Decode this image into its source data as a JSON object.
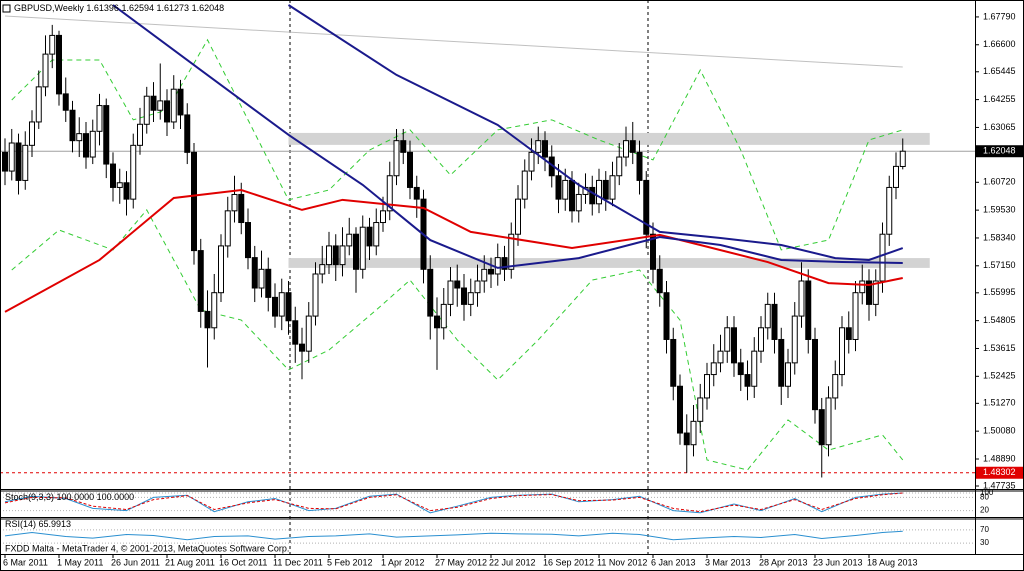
{
  "chart_data": {
    "type": "candlestick",
    "title": "GBPUSD,Weekly",
    "footer": "FXDD Malta - MetaTrader 4, © 2001-2013, MetaQuotes Software Corp.",
    "categories": [
      "6 Mar 2011",
      null,
      null,
      null,
      null,
      null,
      null,
      null,
      "1 May 2011",
      null,
      null,
      null,
      null,
      null,
      null,
      null,
      "26 Jun 2011",
      null,
      null,
      null,
      null,
      null,
      null,
      null,
      "21 Aug 2011",
      null,
      null,
      null,
      null,
      null,
      null,
      null,
      "16 Oct 2011",
      null,
      null,
      null,
      null,
      null,
      null,
      null,
      "11 Dec 2011",
      null,
      null,
      null,
      null,
      null,
      null,
      null,
      "5 Feb 2012",
      null,
      null,
      null,
      null,
      null,
      null,
      null,
      "1 Apr 2012",
      null,
      null,
      null,
      null,
      null,
      null,
      null,
      "27 May 2012",
      null,
      null,
      null,
      null,
      null,
      null,
      null,
      "22 Jul 2012",
      null,
      null,
      null,
      null,
      null,
      null,
      null,
      "16 Sep 2012",
      null,
      null,
      null,
      null,
      null,
      null,
      null,
      "11 Nov 2012",
      null,
      null,
      null,
      null,
      null,
      null,
      null,
      "6 Jan 2013",
      null,
      null,
      null,
      null,
      null,
      null,
      null,
      "3 Mar 2013",
      null,
      null,
      null,
      null,
      null,
      null,
      null,
      "28 Apr 2013",
      null,
      null,
      null,
      null,
      null,
      null,
      null,
      "23 Jun 2013",
      null,
      null,
      null,
      null,
      null,
      null,
      null,
      "18 Aug 2013",
      null,
      null,
      null,
      null,
      null
    ],
    "open": [
      1.62,
      1.612,
      1.624,
      1.608,
      1.623,
      1.633,
      1.648,
      1.662,
      1.67,
      1.645,
      1.638,
      1.625,
      1.628,
      1.618,
      1.629,
      1.64,
      1.615,
      1.605,
      1.607,
      1.6,
      1.623,
      1.632,
      1.644,
      1.638,
      1.642,
      1.633,
      1.647,
      1.636,
      1.62,
      1.578,
      1.552,
      1.545,
      1.56,
      1.58,
      1.595,
      1.602,
      1.59,
      1.575,
      1.562,
      1.57,
      1.558,
      1.55,
      1.56,
      1.548,
      1.538,
      1.535,
      1.55,
      1.568,
      1.572,
      1.58,
      1.572,
      1.58,
      1.585,
      1.57,
      1.588,
      1.58,
      1.59,
      1.595,
      1.61,
      1.625,
      1.62,
      1.605,
      1.6,
      1.57,
      1.55,
      1.545,
      1.555,
      1.565,
      1.562,
      1.555,
      1.56,
      1.565,
      1.57,
      1.568,
      1.575,
      1.57,
      1.585,
      1.6,
      1.612,
      1.62,
      1.625,
      1.618,
      1.61,
      1.6,
      1.608,
      1.595,
      1.602,
      1.605,
      1.598,
      1.608,
      1.6,
      1.61,
      1.618,
      1.625,
      1.62,
      1.608,
      1.585,
      1.57,
      1.56,
      1.54,
      1.52,
      1.5,
      1.495,
      1.505,
      1.515,
      1.525,
      1.53,
      1.535,
      1.545,
      1.53,
      1.525,
      1.52,
      1.535,
      1.545,
      1.555,
      1.54,
      1.52,
      1.53,
      1.55,
      1.565,
      1.54,
      1.51,
      1.495,
      1.515,
      1.525,
      1.545,
      1.54,
      1.56,
      1.565,
      1.555,
      1.565,
      1.585,
      1.605,
      1.61396
    ],
    "high": [
      1.626,
      1.63,
      1.628,
      1.629,
      1.638,
      1.655,
      1.67,
      1.6745,
      1.672,
      1.652,
      1.642,
      1.635,
      1.633,
      1.634,
      1.645,
      1.643,
      1.62,
      1.613,
      1.612,
      1.628,
      1.639,
      1.648,
      1.65,
      1.658,
      1.647,
      1.653,
      1.651,
      1.641,
      1.624,
      1.583,
      1.561,
      1.568,
      1.585,
      1.601,
      1.61,
      1.607,
      1.596,
      1.58,
      1.578,
      1.575,
      1.564,
      1.566,
      1.565,
      1.554,
      1.545,
      1.556,
      1.573,
      1.58,
      1.586,
      1.585,
      1.588,
      1.592,
      1.588,
      1.593,
      1.592,
      1.596,
      1.601,
      1.616,
      1.63,
      1.63,
      1.625,
      1.61,
      1.604,
      1.576,
      1.558,
      1.562,
      1.571,
      1.572,
      1.568,
      1.566,
      1.572,
      1.576,
      1.575,
      1.581,
      1.58,
      1.59,
      1.606,
      1.617,
      1.626,
      1.631,
      1.629,
      1.623,
      1.615,
      1.613,
      1.612,
      1.607,
      1.611,
      1.61,
      1.613,
      1.612,
      1.616,
      1.624,
      1.631,
      1.633,
      1.625,
      1.612,
      1.59,
      1.576,
      1.565,
      1.545,
      1.525,
      1.508,
      1.512,
      1.521,
      1.53,
      1.538,
      1.542,
      1.55,
      1.55,
      1.536,
      1.531,
      1.541,
      1.55,
      1.56,
      1.56,
      1.545,
      1.536,
      1.556,
      1.573,
      1.57,
      1.545,
      1.515,
      1.52,
      1.531,
      1.55,
      1.552,
      1.565,
      1.572,
      1.57,
      1.57,
      1.59,
      1.61,
      1.62,
      1.62594
    ],
    "low": [
      1.606,
      1.608,
      1.602,
      1.604,
      1.618,
      1.63,
      1.644,
      1.656,
      1.64,
      1.633,
      1.62,
      1.618,
      1.613,
      1.615,
      1.623,
      1.609,
      1.599,
      1.598,
      1.593,
      1.596,
      1.619,
      1.628,
      1.633,
      1.634,
      1.627,
      1.63,
      1.63,
      1.615,
      1.572,
      1.545,
      1.528,
      1.54,
      1.556,
      1.575,
      1.59,
      1.585,
      1.57,
      1.556,
      1.558,
      1.552,
      1.545,
      1.544,
      1.542,
      1.53,
      1.523,
      1.53,
      1.546,
      1.564,
      1.568,
      1.565,
      1.567,
      1.576,
      1.56,
      1.566,
      1.574,
      1.576,
      1.586,
      1.591,
      1.606,
      1.615,
      1.6,
      1.592,
      1.564,
      1.54,
      1.527,
      1.54,
      1.55,
      1.554,
      1.548,
      1.55,
      1.554,
      1.56,
      1.562,
      1.563,
      1.565,
      1.566,
      1.58,
      1.596,
      1.608,
      1.615,
      1.612,
      1.605,
      1.594,
      1.595,
      1.59,
      1.59,
      1.598,
      1.593,
      1.594,
      1.595,
      1.597,
      1.606,
      1.614,
      1.615,
      1.602,
      1.579,
      1.564,
      1.554,
      1.534,
      1.514,
      1.495,
      1.483,
      1.49,
      1.5,
      1.51,
      1.52,
      1.526,
      1.53,
      1.524,
      1.518,
      1.514,
      1.515,
      1.53,
      1.54,
      1.534,
      1.512,
      1.515,
      1.525,
      1.545,
      1.534,
      1.504,
      1.481,
      1.49,
      1.51,
      1.52,
      1.534,
      1.535,
      1.555,
      1.548,
      1.55,
      1.56,
      1.58,
      1.6,
      1.61273
    ],
    "close": [
      1.612,
      1.624,
      1.608,
      1.623,
      1.633,
      1.648,
      1.662,
      1.67,
      1.645,
      1.638,
      1.625,
      1.628,
      1.618,
      1.629,
      1.64,
      1.615,
      1.605,
      1.607,
      1.6,
      1.623,
      1.632,
      1.644,
      1.638,
      1.642,
      1.633,
      1.647,
      1.636,
      1.62,
      1.578,
      1.552,
      1.545,
      1.56,
      1.58,
      1.595,
      1.602,
      1.59,
      1.575,
      1.562,
      1.57,
      1.558,
      1.55,
      1.56,
      1.548,
      1.538,
      1.535,
      1.55,
      1.568,
      1.572,
      1.58,
      1.572,
      1.58,
      1.585,
      1.57,
      1.588,
      1.58,
      1.59,
      1.595,
      1.61,
      1.625,
      1.62,
      1.605,
      1.6,
      1.57,
      1.55,
      1.545,
      1.555,
      1.565,
      1.562,
      1.555,
      1.56,
      1.565,
      1.57,
      1.568,
      1.575,
      1.57,
      1.585,
      1.6,
      1.612,
      1.62,
      1.625,
      1.618,
      1.61,
      1.6,
      1.608,
      1.595,
      1.602,
      1.605,
      1.598,
      1.608,
      1.6,
      1.61,
      1.618,
      1.625,
      1.62,
      1.608,
      1.585,
      1.57,
      1.56,
      1.54,
      1.52,
      1.5,
      1.495,
      1.505,
      1.515,
      1.525,
      1.53,
      1.535,
      1.545,
      1.53,
      1.525,
      1.52,
      1.535,
      1.545,
      1.555,
      1.54,
      1.52,
      1.53,
      1.55,
      1.565,
      1.54,
      1.51,
      1.495,
      1.515,
      1.525,
      1.545,
      1.54,
      1.56,
      1.565,
      1.555,
      1.565,
      1.585,
      1.605,
      1.614,
      1.62048
    ],
    "ylim": [
      1.4765,
      1.683
    ],
    "yticks": [
      {
        "value": 1.6779,
        "label": "1.67790"
      },
      {
        "value": 1.666,
        "label": "1.66600"
      },
      {
        "value": 1.65445,
        "label": "1.65445"
      },
      {
        "value": 1.64255,
        "label": "1.64255"
      },
      {
        "value": 1.63065,
        "label": "1.63065"
      },
      {
        "value": 1.6072,
        "label": "1.60720"
      },
      {
        "value": 1.5953,
        "label": "1.59530"
      },
      {
        "value": 1.5834,
        "label": "1.58340"
      },
      {
        "value": 1.5715,
        "label": "1.57150"
      },
      {
        "value": 1.55995,
        "label": "1.55995"
      },
      {
        "value": 1.54805,
        "label": "1.54805"
      },
      {
        "value": 1.53615,
        "label": "1.53615"
      },
      {
        "value": 1.52425,
        "label": "1.52425"
      },
      {
        "value": 1.5127,
        "label": "1.51270"
      },
      {
        "value": 1.5008,
        "label": "1.50080"
      },
      {
        "value": 1.4889,
        "label": "1.48890"
      },
      {
        "value": 1.47735,
        "label": "1.47735"
      }
    ],
    "zones": [
      {
        "color": "#d3d3d3",
        "x": [
          42,
          137
        ],
        "values": [
          1.6232,
          1.6283
        ]
      },
      {
        "color": "#d3d3d3",
        "x": [
          42,
          137
        ],
        "values": [
          1.5706,
          1.5748
        ]
      }
    ],
    "trendline": {
      "color": "#c0c0c0",
      "x": [
        0,
        133
      ],
      "values": [
        1.6783,
        1.6565
      ]
    },
    "bands": [
      {
        "color": "#33cc33",
        "x": [
          1,
          7,
          14,
          19,
          24,
          30,
          36,
          42,
          48,
          54,
          60,
          66,
          73,
          81,
          88,
          96,
          103,
          109,
          115,
          122,
          128,
          133
        ],
        "values": [
          1.6424,
          1.6595,
          1.6595,
          1.6339,
          1.6381,
          1.6681,
          1.6339,
          1.5997,
          1.6039,
          1.621,
          1.6296,
          1.6103,
          1.6296,
          1.6339,
          1.6253,
          1.6168,
          1.6552,
          1.621,
          1.5783,
          1.5825,
          1.6253,
          1.6296
        ]
      },
      {
        "color": "#33cc33",
        "x": [
          1,
          8,
          16,
          21,
          29,
          35,
          42,
          48,
          55,
          60,
          67,
          73,
          79,
          87,
          94,
          100,
          104,
          110,
          116,
          122,
          130,
          133
        ],
        "values": [
          1.5697,
          1.5868,
          1.5783,
          1.5954,
          1.5526,
          1.5483,
          1.527,
          1.5355,
          1.5526,
          1.5654,
          1.5398,
          1.5227,
          1.5398,
          1.5654,
          1.5697,
          1.5483,
          1.4885,
          1.4842,
          1.5056,
          1.4927,
          1.4992,
          1.4885
        ]
      }
    ],
    "ma_lines": [
      {
        "color": "#e00000",
        "x": [
          0,
          14,
          25,
          35,
          44,
          50,
          62,
          69,
          84,
          97,
          103,
          113,
          122,
          128,
          133
        ],
        "values": [
          1.5518,
          1.574,
          1.6005,
          1.6039,
          1.5954,
          1.5997,
          1.5962,
          1.586,
          1.5791,
          1.5847,
          1.5804,
          1.5731,
          1.5641,
          1.5633,
          1.5663
        ]
      },
      {
        "color": "#1a1a8c",
        "x": [
          16,
          29,
          42,
          53,
          63,
          73,
          85,
          97,
          106,
          115,
          124,
          133
        ],
        "values": [
          1.683,
          1.6552,
          1.6275,
          1.6061,
          1.5825,
          1.5706,
          1.5748,
          1.5838,
          1.5804,
          1.574,
          1.5731,
          1.5727
        ]
      },
      {
        "color": "#1a1a8c",
        "x": [
          42,
          58,
          73,
          85,
          97,
          106,
          115,
          123,
          128,
          133
        ],
        "values": [
          1.683,
          1.6531,
          1.6317,
          1.6061,
          1.586,
          1.5834,
          1.5804,
          1.5748,
          1.574,
          1.5791
        ]
      }
    ],
    "current_price": 1.62048,
    "alert_level": 1.48302,
    "alert_color": "#e00000",
    "indicators": [
      {
        "label": "Stoch(9,3,3)",
        "ylim": [
          0,
          100
        ],
        "yticks": [
          20,
          80,
          100
        ],
        "x": [
          0,
          4,
          9,
          13,
          18,
          22,
          27,
          31,
          36,
          40,
          45,
          49,
          54,
          58,
          63,
          67,
          72,
          76,
          81,
          85,
          90,
          94,
          99,
          103,
          108,
          112,
          117,
          121,
          126,
          130,
          133
        ],
        "series": [
          {
            "color": "#2a8fd0",
            "values": [
              60,
              85,
              75,
              30,
              20,
              80,
              90,
              15,
              60,
              75,
              20,
              30,
              85,
              95,
              10,
              40,
              80,
              90,
              95,
              60,
              70,
              85,
              20,
              10,
              50,
              20,
              75,
              15,
              80,
              95,
              100
            ],
            "value_labels": [
              null,
              null,
              null,
              null,
              null,
              null,
              null,
              null,
              null,
              null,
              null,
              null,
              null,
              null,
              null,
              null,
              null,
              null,
              null,
              null,
              null,
              null,
              null,
              null,
              null,
              null,
              null,
              null,
              null,
              null,
              "100.0000"
            ]
          },
          {
            "color": "#e00000",
            "dashed": true,
            "values": [
              55,
              80,
              78,
              40,
              25,
              70,
              88,
              25,
              55,
              70,
              30,
              28,
              80,
              92,
              20,
              35,
              75,
              88,
              93,
              65,
              68,
              80,
              30,
              15,
              45,
              25,
              70,
              25,
              75,
              92,
              100
            ],
            "value_labels": [
              null,
              null,
              null,
              null,
              null,
              null,
              null,
              null,
              null,
              null,
              null,
              null,
              null,
              null,
              null,
              null,
              null,
              null,
              null,
              null,
              null,
              null,
              null,
              null,
              null,
              null,
              null,
              null,
              null,
              null,
              "100.0000"
            ]
          }
        ]
      },
      {
        "label": "RSI(14)",
        "ylim": [
          0,
          100
        ],
        "yticks": [
          30,
          70
        ],
        "x": [
          0,
          4,
          9,
          13,
          18,
          22,
          27,
          31,
          36,
          40,
          45,
          49,
          54,
          58,
          63,
          67,
          72,
          76,
          81,
          85,
          90,
          94,
          99,
          103,
          108,
          112,
          117,
          121,
          126,
          130,
          133
        ],
        "series": [
          {
            "color": "#2a8fd0",
            "values": [
              52,
              62,
              50,
              45,
              56,
              53,
              40,
              50,
              52,
              42,
              50,
              52,
              58,
              48,
              52,
              55,
              60,
              58,
              57,
              52,
              60,
              56,
              40,
              45,
              50,
              47,
              56,
              44,
              53,
              62,
              65.9913
            ]
          }
        ]
      }
    ]
  }
}
